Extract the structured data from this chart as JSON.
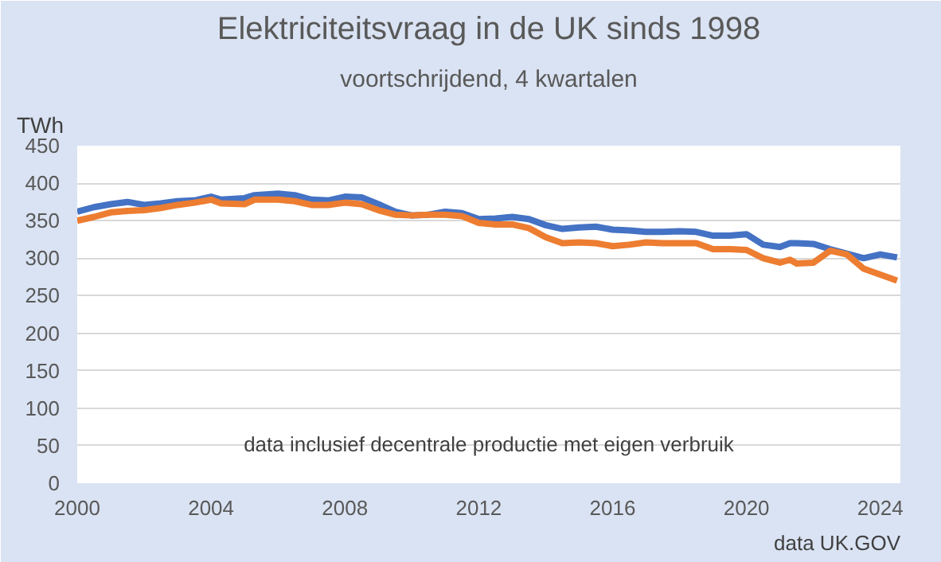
{
  "chart_data": {
    "type": "line",
    "title": "Elektriciteitsvraag in de UK sinds 1998",
    "subtitle": "voortschrijdend, 4 kwartalen",
    "ylabel": "TWh",
    "annotations": [
      "data inclusief decentrale productie met eigen verbruik",
      "data UK.GOV"
    ],
    "x": [
      2000,
      2000.5,
      2001,
      2001.5,
      2002,
      2002.5,
      2003,
      2003.5,
      2004,
      2004.3,
      2005,
      2005.3,
      2006,
      2006.5,
      2007,
      2007.5,
      2008,
      2008.5,
      2009,
      2009.5,
      2010,
      2010.5,
      2011,
      2011.5,
      2012,
      2012.5,
      2013,
      2013.5,
      2014,
      2014.5,
      2015,
      2015.5,
      2016,
      2016.5,
      2017,
      2017.5,
      2018,
      2018.5,
      2019,
      2019.5,
      2020,
      2020.5,
      2021,
      2021.3,
      2021.5,
      2022,
      2022.5,
      2023,
      2023.5,
      2024,
      2024.5
    ],
    "series": [
      {
        "color": "#4472c4",
        "values": [
          362,
          368,
          372,
          375,
          371,
          373,
          376,
          377,
          382,
          378,
          380,
          384,
          386,
          384,
          378,
          377,
          382,
          381,
          372,
          362,
          357,
          358,
          362,
          360,
          352,
          353,
          355,
          352,
          344,
          339,
          341,
          342,
          338,
          337,
          335,
          335,
          336,
          335,
          330,
          330,
          332,
          318,
          315,
          320,
          320,
          319,
          312,
          306,
          300,
          305,
          301
        ]
      },
      {
        "color": "#ed7d31",
        "values": [
          350,
          355,
          361,
          363,
          364,
          367,
          371,
          374,
          378,
          373,
          372,
          378,
          378,
          376,
          371,
          371,
          374,
          372,
          364,
          358,
          357,
          358,
          358,
          356,
          347,
          345,
          345,
          340,
          328,
          320,
          321,
          320,
          316,
          318,
          321,
          320,
          320,
          320,
          312,
          312,
          311,
          300,
          294,
          298,
          293,
          294,
          310,
          305,
          286,
          278,
          270
        ]
      }
    ],
    "xlim": [
      2000,
      2024.6
    ],
    "xticks": [
      2000,
      2004,
      2008,
      2012,
      2016,
      2020,
      2024
    ],
    "ylim": [
      0,
      450
    ],
    "yticks": [
      0,
      50,
      100,
      150,
      200,
      250,
      300,
      350,
      400,
      450
    ],
    "grid": "y",
    "line_style": "solid",
    "marker": "none"
  }
}
